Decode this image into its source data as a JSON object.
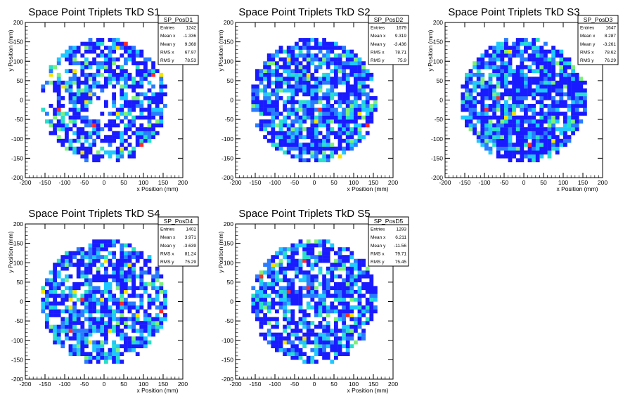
{
  "chart_data": [
    {
      "type": "heatmap",
      "title": "Space Point Triplets TkD S1",
      "xlabel": "x Position (mm)",
      "ylabel": "y Position (mm)",
      "xlim": [
        -200,
        200
      ],
      "ylim": [
        -200,
        200
      ],
      "xticks": [
        -200,
        -150,
        -100,
        -50,
        0,
        50,
        100,
        150,
        200
      ],
      "yticks": [
        -200,
        -150,
        -100,
        -50,
        0,
        50,
        100,
        150,
        200
      ],
      "stats": {
        "name": "SP_PosD1",
        "rows": [
          {
            "label": "Entries",
            "value": "1242"
          },
          {
            "label": "Mean x",
            "value": "-1.336"
          },
          {
            "label": "Mean y",
            "value": "9.368"
          },
          {
            "label": "RMS x",
            "value": "67.97"
          },
          {
            "label": "RMS y",
            "value": "78.53"
          }
        ]
      },
      "bin_width": 10,
      "radius": 160,
      "seed": 11,
      "fill_fraction": 0.68,
      "holes": [
        [
          -5,
          -20,
          40
        ],
        [
          20,
          10,
          25
        ],
        [
          -150,
          -10,
          35
        ]
      ]
    },
    {
      "type": "heatmap",
      "title": "Space Point Triplets TkD S2",
      "xlabel": "x Position (mm)",
      "ylabel": "y Position (mm)",
      "xlim": [
        -200,
        200
      ],
      "ylim": [
        -200,
        200
      ],
      "xticks": [
        -200,
        -150,
        -100,
        -50,
        0,
        50,
        100,
        150,
        200
      ],
      "yticks": [
        -200,
        -150,
        -100,
        -50,
        0,
        50,
        100,
        150,
        200
      ],
      "stats": {
        "name": "SP_PosD2",
        "rows": [
          {
            "label": "Entries",
            "value": "1679"
          },
          {
            "label": "Mean x",
            "value": "9.319"
          },
          {
            "label": "Mean y",
            "value": "-3.436"
          },
          {
            "label": "RMS x",
            "value": "78.71"
          },
          {
            "label": "RMS y",
            "value": "75.9"
          }
        ]
      },
      "bin_width": 10,
      "radius": 160,
      "seed": 23,
      "fill_fraction": 0.8,
      "holes": []
    },
    {
      "type": "heatmap",
      "title": "Space Point Triplets TkD S3",
      "xlabel": "x Position (mm)",
      "ylabel": "y Position (mm)",
      "xlim": [
        -200,
        200
      ],
      "ylim": [
        -200,
        200
      ],
      "xticks": [
        -200,
        -150,
        -100,
        -50,
        0,
        50,
        100,
        150,
        200
      ],
      "yticks": [
        -200,
        -150,
        -100,
        -50,
        0,
        50,
        100,
        150,
        200
      ],
      "stats": {
        "name": "SP_PosD3",
        "rows": [
          {
            "label": "Entries",
            "value": "1647"
          },
          {
            "label": "Mean x",
            "value": "8.287"
          },
          {
            "label": "Mean y",
            "value": "-3.261"
          },
          {
            "label": "RMS x",
            "value": "78.62"
          },
          {
            "label": "RMS y",
            "value": "76.29"
          }
        ]
      },
      "bin_width": 10,
      "radius": 160,
      "seed": 37,
      "fill_fraction": 0.82,
      "holes": []
    },
    {
      "type": "heatmap",
      "title": "Space Point Triplets TkD S4",
      "xlabel": "x Position (mm)",
      "ylabel": "y Position (mm)",
      "xlim": [
        -200,
        200
      ],
      "ylim": [
        -200,
        200
      ],
      "xticks": [
        -200,
        -150,
        -100,
        -50,
        0,
        50,
        100,
        150,
        200
      ],
      "yticks": [
        -200,
        -150,
        -100,
        -50,
        0,
        50,
        100,
        150,
        200
      ],
      "stats": {
        "name": "SP_PosD4",
        "rows": [
          {
            "label": "Entries",
            "value": "1402"
          },
          {
            "label": "Mean x",
            "value": "3.971"
          },
          {
            "label": "Mean y",
            "value": "-3.639"
          },
          {
            "label": "RMS x",
            "value": "81.24"
          },
          {
            "label": "RMS y",
            "value": "75.29"
          }
        ]
      },
      "bin_width": 10,
      "radius": 160,
      "seed": 41,
      "fill_fraction": 0.72,
      "holes": []
    },
    {
      "type": "heatmap",
      "title": "Space Point Triplets TkD S5",
      "xlabel": "x Position (mm)",
      "ylabel": "y Position (mm)",
      "xlim": [
        -200,
        200
      ],
      "ylim": [
        -200,
        200
      ],
      "xticks": [
        -200,
        -150,
        -100,
        -50,
        0,
        50,
        100,
        150,
        200
      ],
      "yticks": [
        -200,
        -150,
        -100,
        -50,
        0,
        50,
        100,
        150,
        200
      ],
      "stats": {
        "name": "SP_PosD5",
        "rows": [
          {
            "label": "Entries",
            "value": "1293"
          },
          {
            "label": "Mean x",
            "value": "6.211"
          },
          {
            "label": "Mean y",
            "value": "-11.56"
          },
          {
            "label": "RMS x",
            "value": "79.71"
          },
          {
            "label": "RMS y",
            "value": "75.45"
          }
        ]
      },
      "bin_width": 10,
      "radius": 160,
      "seed": 53,
      "fill_fraction": 0.7,
      "holes": []
    }
  ],
  "colors": {
    "palette": [
      "#1a1aff",
      "#1a1aff",
      "#2a7cff",
      "#1fc8ff",
      "#28e0c8",
      "#7ef07a",
      "#f5e400",
      "#ff2a2a"
    ],
    "axis": "#000000",
    "background": "#ffffff"
  }
}
